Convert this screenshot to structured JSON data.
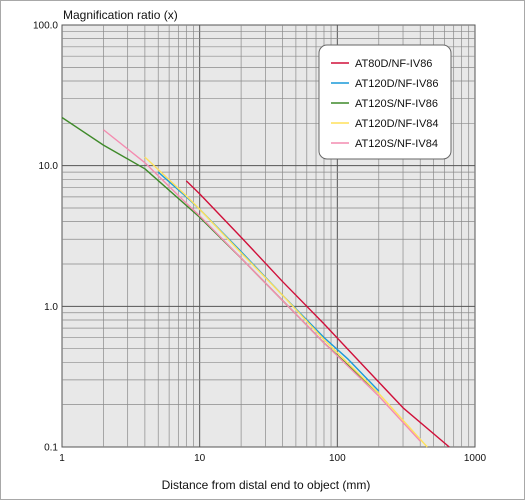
{
  "chart_data": {
    "type": "line",
    "x_scale": "log",
    "y_scale": "log",
    "xlim": [
      1,
      1000
    ],
    "ylim": [
      0.1,
      100
    ],
    "ylabel": "Magnification ratio (x)",
    "xlabel": "Distance from distal end to object (mm)",
    "x_ticks": [
      1,
      10,
      100,
      1000
    ],
    "x_tick_labels": [
      "1",
      "10",
      "100",
      "1000"
    ],
    "y_ticks": [
      0.1,
      1,
      10,
      100
    ],
    "y_tick_labels": [
      "0.1",
      "1.0",
      "10.0",
      "100.0"
    ],
    "grid": true,
    "legend_position": "top-right",
    "series": [
      {
        "name": "AT80D/NF-IV86",
        "color": "#d0103a",
        "x": [
          8,
          10,
          20,
          40,
          80,
          150,
          300,
          650
        ],
        "y": [
          7.8,
          6.3,
          3.1,
          1.5,
          0.75,
          0.39,
          0.19,
          0.1
        ]
      },
      {
        "name": "AT120D/NF-IV86",
        "color": "#1a9ad8",
        "x": [
          5,
          8,
          10,
          20,
          40,
          80,
          120,
          200
        ],
        "y": [
          9.0,
          6.0,
          4.9,
          2.45,
          1.2,
          0.6,
          0.42,
          0.25
        ]
      },
      {
        "name": "AT120S/NF-IV86",
        "color": "#3f8a2a",
        "x": [
          1,
          2,
          4,
          10,
          20,
          40,
          80,
          200
        ],
        "y": [
          22,
          14,
          9.5,
          4.3,
          2.2,
          1.1,
          0.55,
          0.24
        ]
      },
      {
        "name": "AT120D/NF-IV84",
        "color": "#ffe15a",
        "x": [
          4,
          8,
          10,
          20,
          40,
          80,
          200,
          450
        ],
        "y": [
          11.5,
          6.1,
          4.9,
          2.4,
          1.2,
          0.58,
          0.24,
          0.1
        ]
      },
      {
        "name": "AT120S/NF-IV84",
        "color": "#f48cb0",
        "x": [
          2,
          4,
          8,
          10,
          20,
          40,
          80,
          200,
          400
        ],
        "y": [
          18,
          10.5,
          5.4,
          4.4,
          2.2,
          1.1,
          0.55,
          0.23,
          0.11
        ]
      }
    ]
  }
}
